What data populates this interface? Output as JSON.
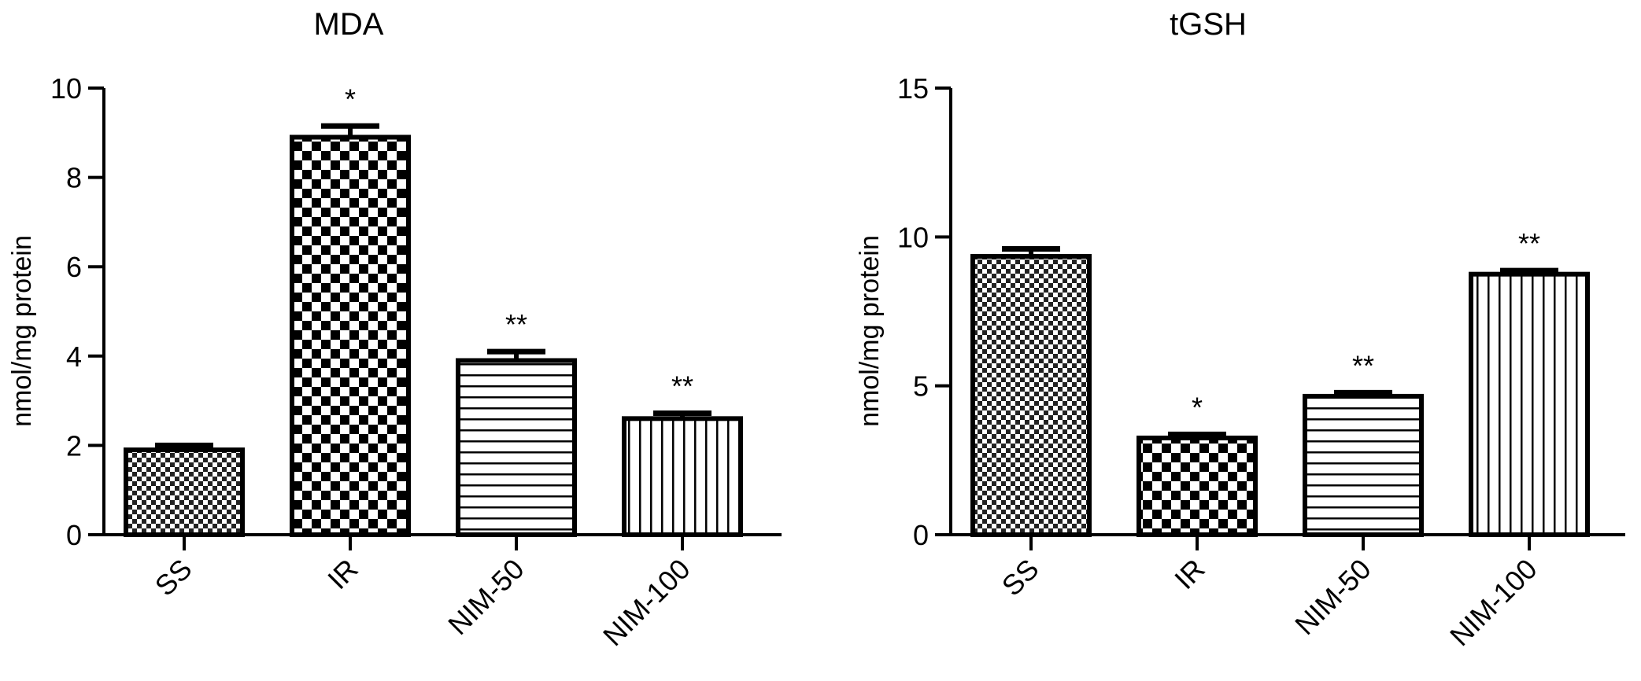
{
  "chart_data": [
    {
      "type": "bar",
      "title": "MDA",
      "xlabel": "",
      "ylabel": "nmol/mg protein",
      "ylim": [
        0,
        10
      ],
      "yticks": [
        0,
        2,
        4,
        6,
        8,
        10
      ],
      "categories": [
        "SS",
        "IR",
        "NIM-50",
        "NIM-100"
      ],
      "values": [
        1.9,
        8.9,
        3.9,
        2.6
      ],
      "errors": [
        0.1,
        0.25,
        0.2,
        0.12
      ],
      "significance": [
        "",
        "*",
        "**",
        "**"
      ],
      "patterns": [
        "fine-checker",
        "coarse-checker",
        "horizontal-lines",
        "vertical-lines"
      ],
      "grid": false
    },
    {
      "type": "bar",
      "title": "tGSH",
      "xlabel": "",
      "ylabel": "nmol/mg protein",
      "ylim": [
        0,
        15
      ],
      "yticks": [
        0,
        5,
        10,
        15
      ],
      "categories": [
        "SS",
        "IR",
        "NIM-50",
        "NIM-100"
      ],
      "values": [
        9.35,
        3.25,
        4.65,
        8.75
      ],
      "errors": [
        0.25,
        0.12,
        0.12,
        0.12
      ],
      "significance": [
        "",
        "*",
        "**",
        "**"
      ],
      "patterns": [
        "fine-checker",
        "coarse-checker",
        "horizontal-lines",
        "vertical-lines"
      ],
      "grid": false
    }
  ]
}
